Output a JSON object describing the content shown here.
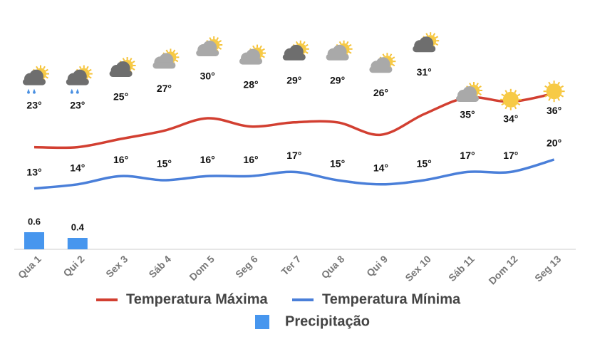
{
  "chart_data": {
    "type": "line",
    "categories": [
      "Qua 1",
      "Qui 2",
      "Sex 3",
      "Sáb 4",
      "Dom 5",
      "Seg 6",
      "Ter 7",
      "Qua 8",
      "Qui 9",
      "Sex 10",
      "Sáb 11",
      "Dom 12",
      "Seg 13"
    ],
    "series": [
      {
        "name": "Temperatura Máxima",
        "color": "#d23f31",
        "values": [
          23,
          23,
          25,
          27,
          30,
          28,
          29,
          29,
          26,
          31,
          35,
          34,
          36
        ],
        "value_labels": [
          "23°",
          "23°",
          "25°",
          "27°",
          "30°",
          "28°",
          "29°",
          "29°",
          "26°",
          "31°",
          "35°",
          "34°",
          "36°"
        ]
      },
      {
        "name": "Temperatura Mínima",
        "color": "#4a7fd9",
        "values": [
          13,
          14,
          16,
          15,
          16,
          16,
          17,
          15,
          14,
          15,
          17,
          17,
          20
        ],
        "value_labels": [
          "13°",
          "14°",
          "16°",
          "15°",
          "16°",
          "16°",
          "17°",
          "15°",
          "14°",
          "15°",
          "17°",
          "17°",
          "20°"
        ]
      },
      {
        "name": "Precipitação",
        "color": "#4796ee",
        "type": "bar",
        "axis": "y2",
        "values": [
          0.6,
          0.4,
          null,
          null,
          null,
          null,
          null,
          null,
          null,
          null,
          null,
          null,
          null
        ]
      }
    ],
    "ylim": [
      0,
      40
    ],
    "y2lim": [
      0,
      6
    ],
    "icons": [
      "rain",
      "rain",
      "dark-cloud-sun",
      "light-cloud-sun",
      "light-cloud-sun",
      "light-cloud-sun",
      "dark-cloud-sun",
      "light-cloud-sun",
      "light-cloud-sun",
      "dark-cloud-sun",
      "light-cloud-sun",
      "sun",
      "sun"
    ]
  }
}
